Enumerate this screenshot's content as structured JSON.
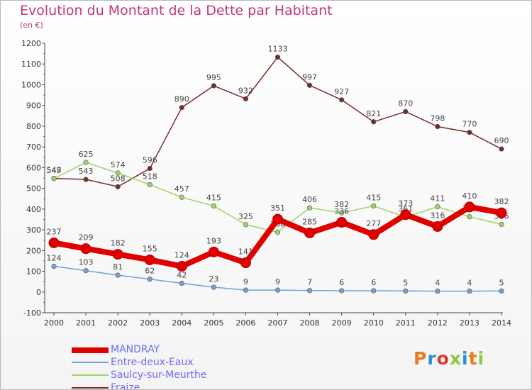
{
  "header": {
    "title": "Evolution du Montant de la Dette par Habitant",
    "subtitle": "(en €)"
  },
  "logo": {
    "text": "Proxiti",
    "colors": [
      "#e87a1e",
      "#2a8fd8",
      "#e03b2a",
      "#8dc63f",
      "#2a8fd8",
      "#e87a1e",
      "#8dc63f"
    ]
  },
  "chart_data": {
    "type": "line",
    "title": "Evolution du Montant de la Dette par Habitant",
    "subtitle": "(en €)",
    "x": [
      "2000",
      "2001",
      "2002",
      "2003",
      "2004",
      "2005",
      "2006",
      "2007",
      "2008",
      "2009",
      "2010",
      "2011",
      "2012",
      "2013",
      "2014"
    ],
    "ylim": [
      -100,
      1200
    ],
    "yticks": [
      -100,
      0,
      100,
      200,
      300,
      400,
      500,
      600,
      700,
      800,
      900,
      1000,
      1100,
      1200
    ],
    "grid": false,
    "legend_position": "bottom-left",
    "series": [
      {
        "name": "MANDRAY",
        "color": "#e00000",
        "values": [
          237,
          209,
          182,
          155,
          124,
          193,
          141,
          351,
          285,
          336,
          277,
          373,
          316,
          410,
          382
        ],
        "labels": [
          "237",
          "209",
          "182",
          "155",
          "124",
          "193",
          "141",
          "351",
          "285",
          "336",
          "277",
          "373",
          "316",
          "410",
          "382"
        ]
      },
      {
        "name": "Entre-deux-Eaux",
        "color": "#6fa3d4",
        "values": [
          124,
          103,
          81,
          62,
          42,
          23,
          9,
          9,
          7,
          6,
          6,
          5,
          4,
          4,
          5
        ],
        "labels": [
          "124",
          "103",
          "81",
          "62",
          "42",
          "23",
          "9",
          "9",
          "7",
          "6",
          "6",
          "5",
          "4",
          "4",
          "5"
        ]
      },
      {
        "name": "Saulcy-sur-Meurthe",
        "color": "#9ed46a",
        "values": [
          547,
          625,
          574,
          518,
          457,
          415,
          325,
          288,
          406,
          382,
          415,
          361,
          411,
          363,
          326
        ],
        "labels": [
          "547",
          "625",
          "574",
          "518",
          "457",
          "415",
          "325",
          "288",
          "406",
          "382",
          "415",
          "361",
          "411",
          "363",
          "326"
        ]
      },
      {
        "name": "Fraize",
        "color": "#7a2a2a",
        "values": [
          548,
          543,
          508,
          596,
          890,
          995,
          932,
          1133,
          997,
          927,
          821,
          870,
          798,
          770,
          690
        ],
        "labels": [
          "548",
          "543",
          "508",
          "596",
          "890",
          "995",
          "932",
          "1133",
          "997",
          "927",
          "821",
          "870",
          "798",
          "770",
          "690"
        ]
      }
    ]
  }
}
